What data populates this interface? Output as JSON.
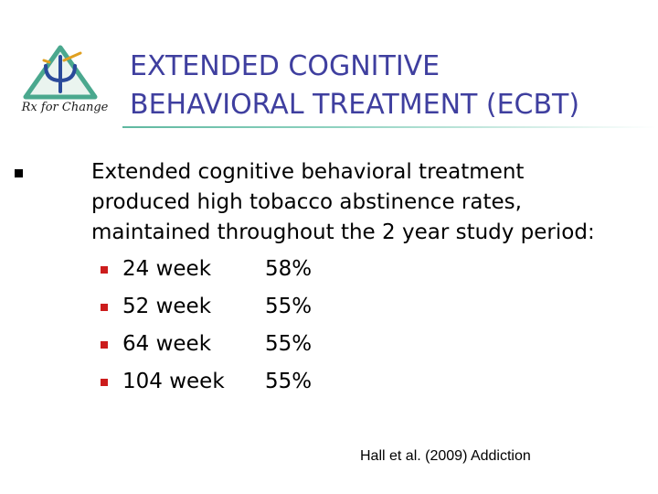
{
  "logo": {
    "text": "Rx for Change",
    "icon": "psi-triangle-logo-icon"
  },
  "title": {
    "line1": "EXTENDED COGNITIVE",
    "line2": "BEHAVIORAL TREATMENT (ECBT)"
  },
  "main_bullet": {
    "lines": [
      "Extended cognitive behavioral treatment",
      "produced high tobacco abstinence rates,",
      "maintained throughout the 2 year study period:"
    ]
  },
  "sub_bullets": [
    {
      "week": "24 week",
      "pct": "58%"
    },
    {
      "week": "52 week",
      "pct": "55%"
    },
    {
      "week": "64 week",
      "pct": "55%"
    },
    {
      "week": "104 week",
      "pct": "55%"
    }
  ],
  "citation": "Hall et al. (2009) Addiction",
  "colors": {
    "title": "#3f3f9f",
    "rule": "#5fb8a0",
    "sub_bullet": "#cc1c1c",
    "logo_triangle": "#4aa88e",
    "logo_psi": "#2a4a9a"
  }
}
